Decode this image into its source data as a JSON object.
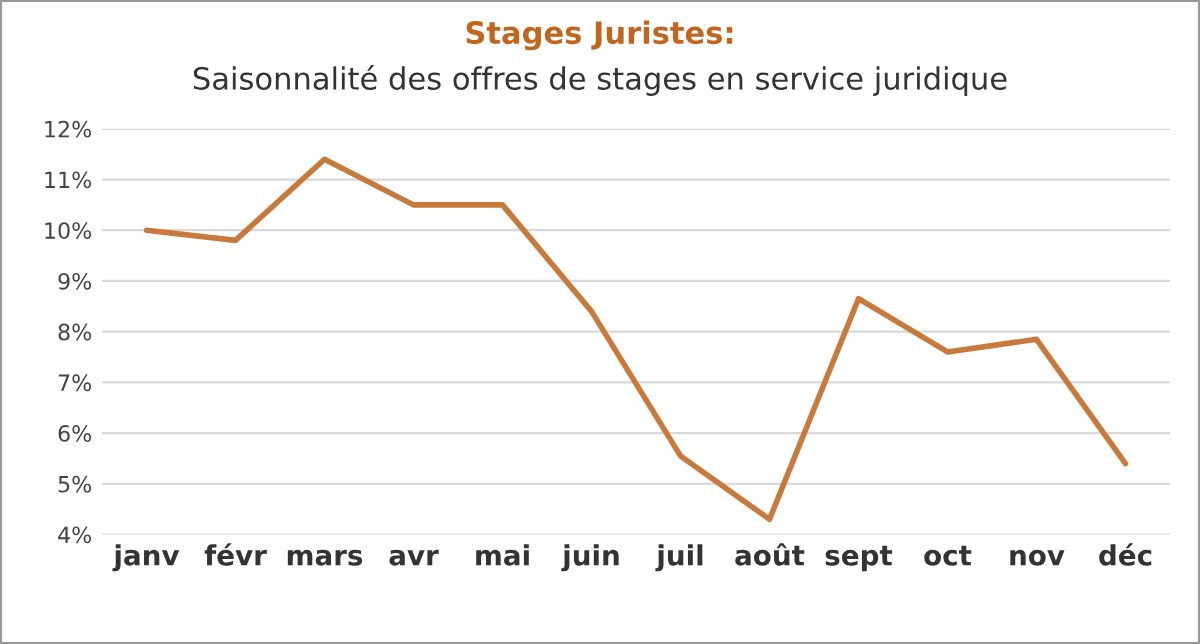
{
  "chart_data": {
    "type": "line",
    "title": "Stages Juristes:",
    "subtitle": "Saisonnalité des offres de stages en service juridique",
    "categories": [
      "janv",
      "févr",
      "mars",
      "avr",
      "mai",
      "juin",
      "juil",
      "août",
      "sept",
      "oct",
      "nov",
      "déc"
    ],
    "series": [
      {
        "color": "#c8793c",
        "values": [
          10.0,
          9.8,
          11.4,
          10.5,
          10.5,
          8.4,
          5.55,
          4.3,
          8.65,
          7.6,
          7.85,
          5.4
        ]
      }
    ],
    "ylim": [
      4,
      12
    ],
    "yticks": [
      {
        "value": 4,
        "label": "4%"
      },
      {
        "value": 5,
        "label": "5%"
      },
      {
        "value": 6,
        "label": "6%"
      },
      {
        "value": 7,
        "label": "7%"
      },
      {
        "value": 8,
        "label": "8%"
      },
      {
        "value": 9,
        "label": "9%"
      },
      {
        "value": 10,
        "label": "10%"
      },
      {
        "value": 11,
        "label": "11%"
      },
      {
        "value": 12,
        "label": "12%"
      }
    ],
    "grid": "y",
    "legend": false,
    "marker": "none",
    "line_style": "solid"
  }
}
